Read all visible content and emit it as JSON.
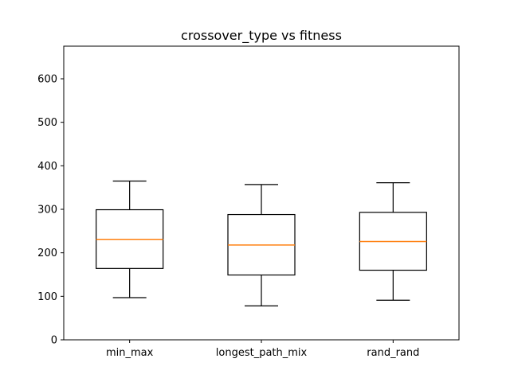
{
  "chart_data": {
    "type": "box",
    "title": "crossover_type vs fitness",
    "xlabel": "",
    "ylabel": "",
    "categories": [
      "min_max",
      "longest_path_mix",
      "rand_rand"
    ],
    "boxes": [
      {
        "category": "min_max",
        "whisker_low": 97,
        "q1": 164,
        "median": 231,
        "q3": 299,
        "whisker_high": 365
      },
      {
        "category": "longest_path_mix",
        "whisker_low": 78,
        "q1": 149,
        "median": 218,
        "q3": 288,
        "whisker_high": 357
      },
      {
        "category": "rand_rand",
        "whisker_low": 91,
        "q1": 160,
        "median": 226,
        "q3": 293,
        "whisker_high": 361
      }
    ],
    "ylim": [
      0,
      675
    ],
    "yticks": [
      0,
      100,
      200,
      300,
      400,
      500,
      600
    ],
    "ytick_labels": [
      "0",
      "100",
      "200",
      "300",
      "400",
      "500",
      "600"
    ],
    "grid": false,
    "colors": {
      "box": "#000000",
      "median": "#ff7f0e"
    }
  }
}
